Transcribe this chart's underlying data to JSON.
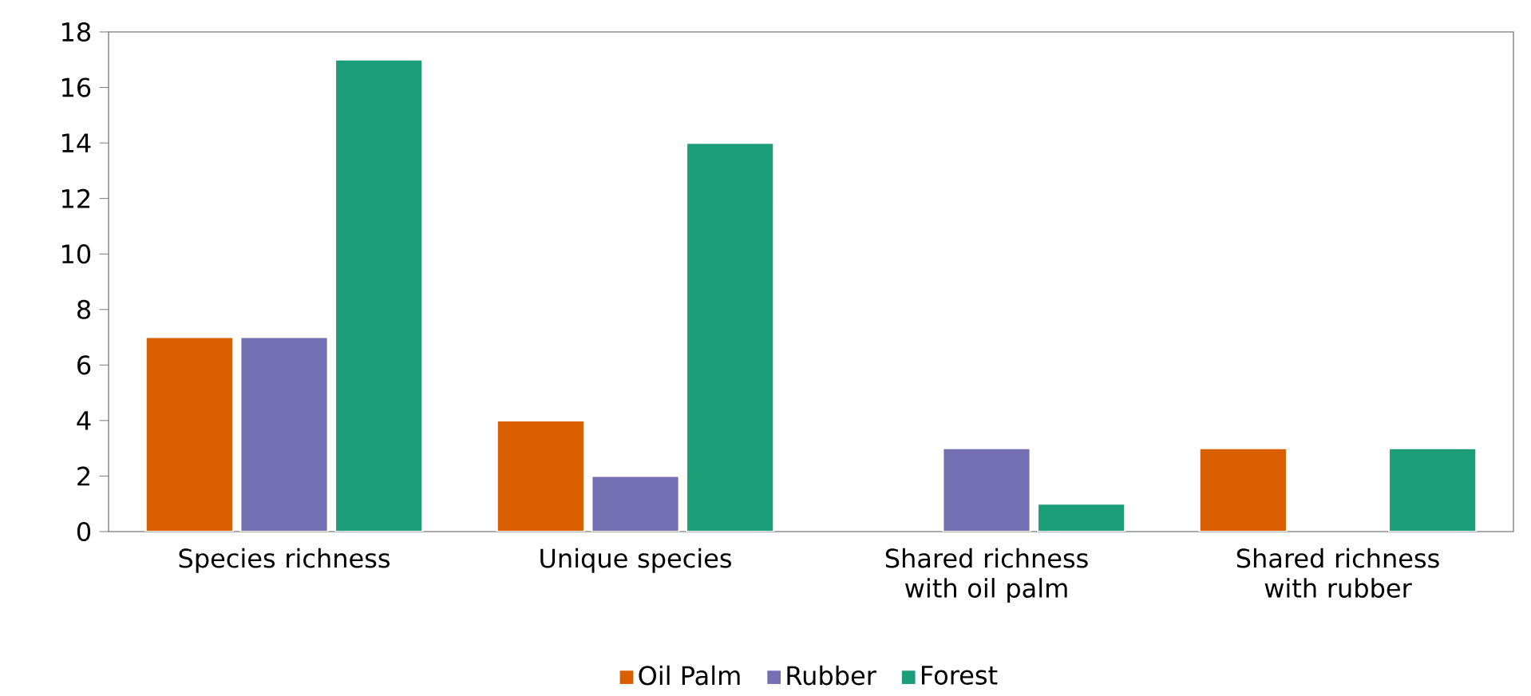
{
  "chart_data": {
    "type": "bar",
    "categories": [
      "Species richness",
      "Unique species",
      "Shared richness with oil palm",
      "Shared richness with rubber"
    ],
    "series": [
      {
        "name": "Oil Palm",
        "color": "#d95f02",
        "values": [
          7,
          4,
          null,
          3
        ]
      },
      {
        "name": "Rubber",
        "color": "#7570b3",
        "values": [
          7,
          2,
          3,
          null
        ]
      },
      {
        "name": "Forest",
        "color": "#1b9e77",
        "values": [
          17,
          14,
          1,
          3
        ]
      }
    ],
    "ylim": [
      0,
      18
    ],
    "yticks": [
      0,
      2,
      4,
      6,
      8,
      10,
      12,
      14,
      16,
      18
    ],
    "grid": false,
    "legend": "bottom"
  }
}
